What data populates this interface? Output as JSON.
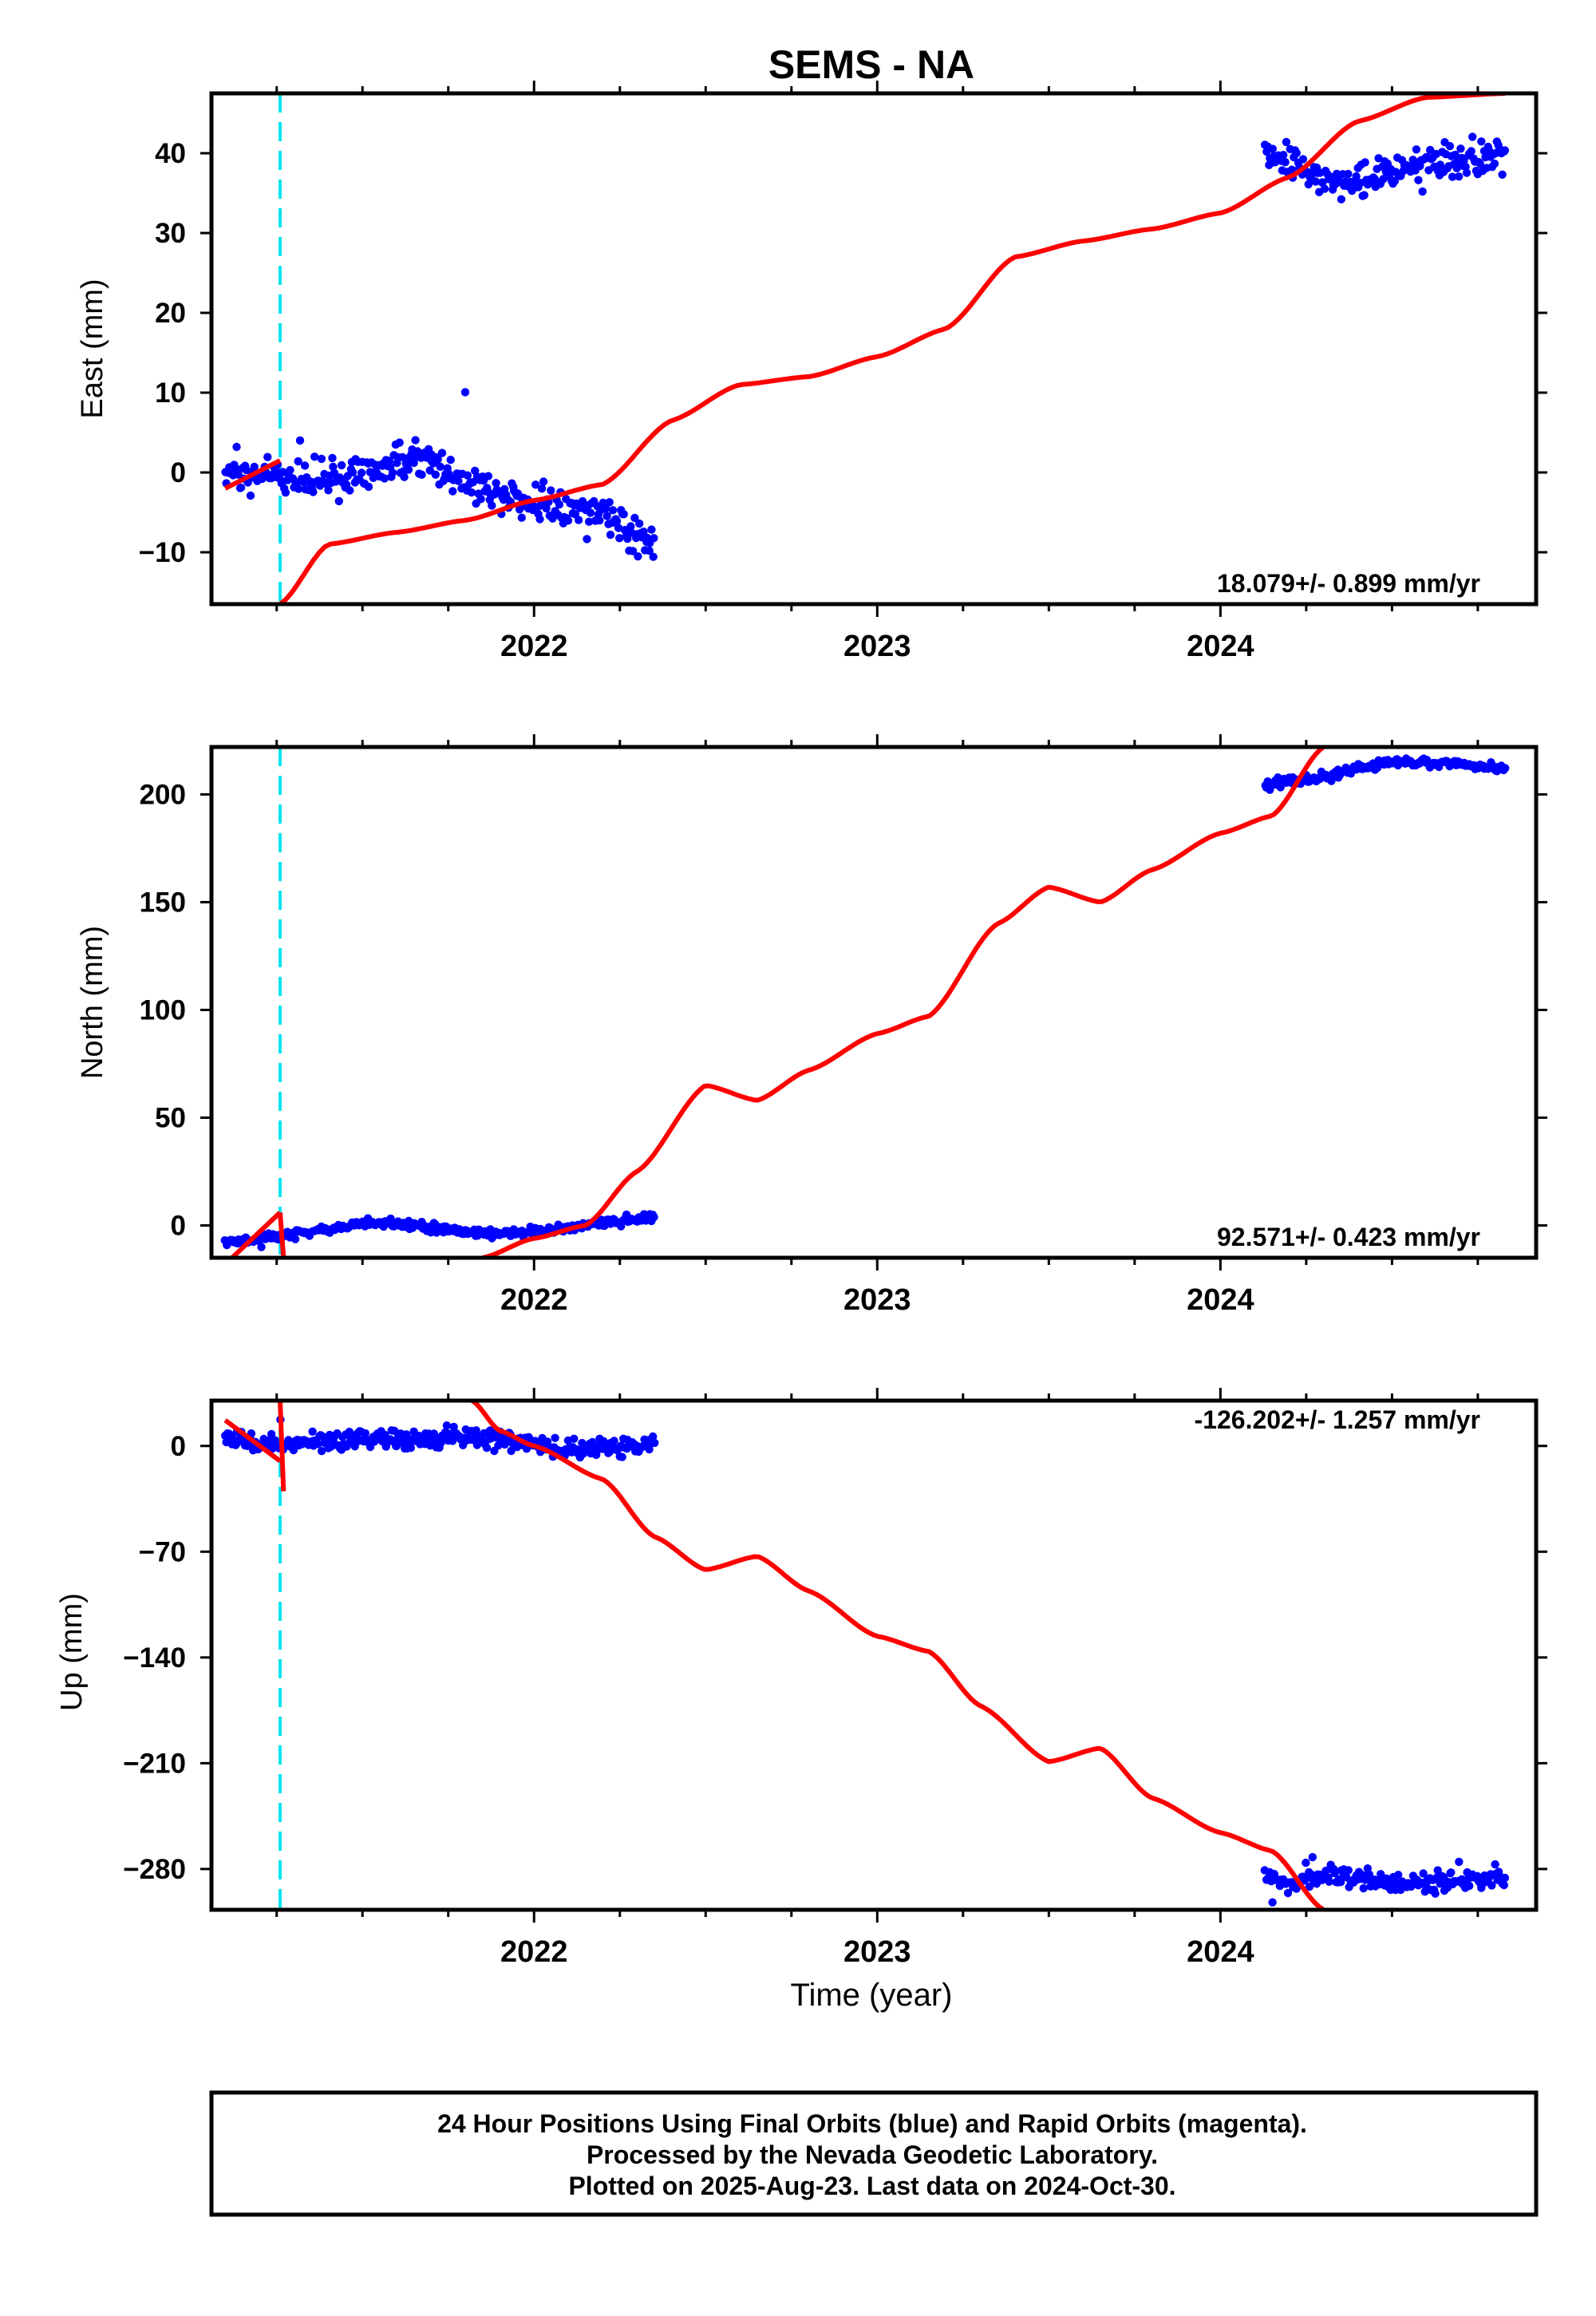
{
  "title": "SEMS - NA",
  "x_axis_label": "Time (year)",
  "colors": {
    "observations": "#0000ff",
    "model": "#ff0000",
    "event_line": "#00e5ee",
    "frame": "#000000"
  },
  "footer_lines": [
    "24 Hour Positions Using Final Orbits (blue) and Rapid Orbits (magenta).",
    "Processed by the Nevada Geodetic Laboratory.",
    "Plotted on 2025-Aug-23. Last data on 2024-Oct-30."
  ],
  "chart_data": [
    {
      "type": "scatter",
      "component": "East",
      "ylabel": "East (mm)",
      "rate_label": "18.079+/- 0.899 mm/yr",
      "xlim": [
        2021.06,
        2024.92
      ],
      "ylim": [
        -16.5,
        47.5
      ],
      "yticks": [
        -10,
        0,
        10,
        20,
        30,
        40
      ],
      "ytick_labels": [
        "−10",
        "0",
        "10",
        "20",
        "30",
        "40"
      ],
      "xticks": [
        2022,
        2023,
        2024
      ],
      "xtick_labels": [
        "2022",
        "2023",
        "2024"
      ],
      "event_line_x": 2021.26,
      "observation_segments": [
        {
          "x": [
            2021.1,
            2021.2,
            2021.3,
            2021.4,
            2021.5,
            2021.6,
            2021.7,
            2021.8,
            2021.9,
            2022.0,
            2022.1,
            2022.2,
            2022.3,
            2022.35
          ],
          "y": [
            0.5,
            -0.5,
            -0.5,
            -1.0,
            -0.5,
            1.0,
            1.5,
            -1.0,
            -2.5,
            -3.5,
            -4.0,
            -5.0,
            -8.0,
            -9.0
          ]
        },
        {
          "x": [
            2024.13,
            2024.2,
            2024.3,
            2024.4,
            2024.5,
            2024.6,
            2024.7,
            2024.8,
            2024.83
          ],
          "y": [
            40.5,
            38.5,
            37.0,
            36.5,
            37.5,
            39.0,
            39.5,
            40.0,
            39.5
          ]
        }
      ],
      "model_segments": [
        {
          "x": [
            2021.1,
            2021.26
          ],
          "y": [
            -2.0,
            1.5
          ]
        },
        {
          "x": [
            2021.26,
            2021.4,
            2021.6,
            2021.8,
            2022.0,
            2022.2,
            2022.4,
            2022.6,
            2022.8,
            2023.0,
            2023.2,
            2023.4,
            2023.6,
            2023.8,
            2024.0,
            2024.2,
            2024.4,
            2024.6,
            2024.83
          ],
          "y": [
            -16.5,
            -9.0,
            -7.5,
            -6.0,
            -3.5,
            -1.5,
            6.5,
            11.0,
            12.0,
            14.5,
            18.0,
            27.0,
            29.0,
            30.5,
            32.5,
            37.0,
            44.0,
            47.0,
            47.5
          ]
        }
      ]
    },
    {
      "type": "scatter",
      "component": "North",
      "ylabel": "North (mm)",
      "rate_label": "92.571+/- 0.423 mm/yr",
      "xlim": [
        2021.06,
        2024.92
      ],
      "ylim": [
        -15,
        222
      ],
      "yticks": [
        0,
        50,
        100,
        150,
        200
      ],
      "ytick_labels": [
        "0",
        "50",
        "100",
        "150",
        "200"
      ],
      "xticks": [
        2022,
        2023,
        2024
      ],
      "xtick_labels": [
        "2022",
        "2023",
        "2024"
      ],
      "event_line_x": 2021.26,
      "observation_segments": [
        {
          "x": [
            2021.1,
            2021.2,
            2021.3,
            2021.4,
            2021.5,
            2021.6,
            2021.7,
            2021.8,
            2021.9,
            2022.0,
            2022.1,
            2022.2,
            2022.3,
            2022.35
          ],
          "y": [
            -8,
            -6,
            -4,
            -2,
            1,
            1,
            -1,
            -3,
            -4,
            -3,
            -1,
            1,
            3,
            4
          ]
        },
        {
          "x": [
            2024.13,
            2024.2,
            2024.3,
            2024.4,
            2024.5,
            2024.6,
            2024.7,
            2024.8,
            2024.83
          ],
          "y": [
            205,
            206,
            208,
            212,
            215,
            215,
            214,
            212,
            212
          ]
        }
      ],
      "model_segments": [
        {
          "x": [
            2021.12,
            2021.26
          ],
          "y": [
            -15,
            6
          ]
        },
        {
          "x": [
            2021.26,
            2021.27
          ],
          "y": [
            6,
            -15
          ]
        },
        {
          "x": [
            2021.85,
            2022.0,
            2022.15,
            2022.3,
            2022.5,
            2022.65,
            2022.8,
            2023.0,
            2023.15,
            2023.35,
            2023.5,
            2023.65,
            2023.8,
            2024.0,
            2024.15,
            2024.3
          ],
          "y": [
            -15,
            -6,
            0,
            25,
            65,
            58,
            72,
            89,
            97,
            140,
            157,
            150,
            165,
            182,
            190,
            222
          ]
        }
      ]
    },
    {
      "type": "scatter",
      "component": "Up",
      "ylabel": "Up (mm)",
      "rate_label": "-126.202+/- 1.257 mm/yr",
      "xlim": [
        2021.06,
        2024.92
      ],
      "ylim": [
        -307,
        30
      ],
      "yticks": [
        0,
        -70,
        -140,
        -210,
        -280
      ],
      "ytick_labels": [
        "0",
        "−70",
        "−140",
        "−210",
        "−280"
      ],
      "xticks": [
        2022,
        2023,
        2024
      ],
      "xtick_labels": [
        "2022",
        "2023",
        "2024"
      ],
      "event_line_x": 2021.26,
      "observation_segments": [
        {
          "x": [
            2021.1,
            2021.2,
            2021.3,
            2021.4,
            2021.5,
            2021.6,
            2021.7,
            2021.8,
            2021.9,
            2022.0,
            2022.1,
            2022.2,
            2022.3,
            2022.35
          ],
          "y": [
            5,
            2,
            0,
            3,
            6,
            4,
            5,
            7,
            4,
            2,
            -2,
            0,
            1,
            2
          ]
        },
        {
          "x": [
            2024.13,
            2024.2,
            2024.3,
            2024.4,
            2024.5,
            2024.6,
            2024.7,
            2024.8,
            2024.83
          ],
          "y": [
            -285,
            -290,
            -284,
            -287,
            -290,
            -289,
            -287,
            -286,
            -288
          ]
        }
      ],
      "model_segments": [
        {
          "x": [
            2021.1,
            2021.26
          ],
          "y": [
            17,
            -10
          ]
        },
        {
          "x": [
            2021.26,
            2021.27
          ],
          "y": [
            30,
            -30
          ]
        },
        {
          "x": [
            2021.82,
            2021.9,
            2022.0,
            2022.2,
            2022.35,
            2022.5,
            2022.65,
            2022.8,
            2023.0,
            2023.15,
            2023.3,
            2023.5,
            2023.65,
            2023.8,
            2024.0,
            2024.15,
            2024.3
          ],
          "y": [
            30,
            10,
            0,
            -22,
            -60,
            -82,
            -73,
            -96,
            -126,
            -136,
            -172,
            -209,
            -200,
            -233,
            -256,
            -268,
            -307
          ]
        }
      ]
    }
  ]
}
